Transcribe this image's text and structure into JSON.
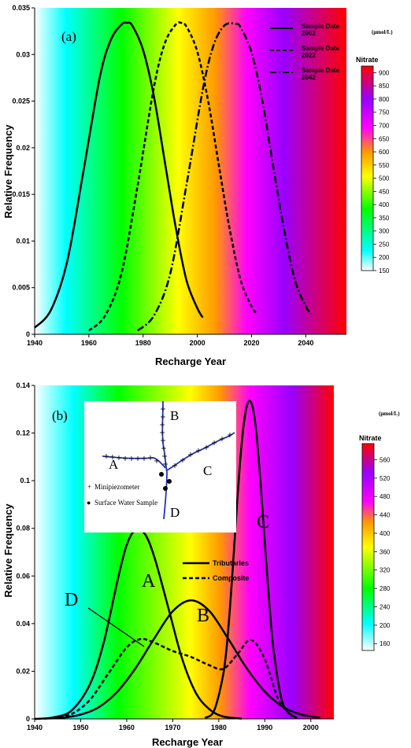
{
  "chart_data": [
    {
      "type": "line",
      "panel_label": "(a)",
      "xlabel": "Recharge Year",
      "ylabel": "Relative Frequency",
      "xlim": [
        1940,
        2055
      ],
      "ylim": [
        0,
        0.035
      ],
      "xticks": [
        "1940",
        "1960",
        "1980",
        "2000",
        "2020",
        "2040"
      ],
      "yticks": [
        "0",
        "0.005",
        "0.01",
        "0.015",
        "0.02",
        "0.025",
        "0.03",
        "0.035"
      ],
      "xtick_values": [
        1940,
        1960,
        1980,
        2000,
        2020,
        2040
      ],
      "ytick_values": [
        0,
        0.005,
        0.01,
        0.015,
        0.02,
        0.025,
        0.03,
        0.035
      ],
      "background": "nitrate colour gradient along recharge year",
      "series": [
        {
          "name": "Sample Date 2002",
          "style": "solid",
          "x": [
            1940,
            1946,
            1952,
            1958,
            1964,
            1968,
            1972,
            1974,
            1976,
            1980,
            1984,
            1988,
            1992,
            1996,
            2000,
            2002
          ],
          "y": [
            0.0007,
            0.0026,
            0.0078,
            0.0175,
            0.0275,
            0.0315,
            0.0332,
            0.0334,
            0.0331,
            0.0305,
            0.0255,
            0.0185,
            0.0115,
            0.0058,
            0.0028,
            0.0018
          ]
        },
        {
          "name": "Sample Date 2022",
          "style": "dashed",
          "x": [
            1960,
            1966,
            1972,
            1978,
            1984,
            1988,
            1992,
            1994,
            1996,
            2000,
            2004,
            2008,
            2012,
            2016,
            2020,
            2022
          ],
          "y": [
            0.0004,
            0.002,
            0.0065,
            0.016,
            0.0265,
            0.0312,
            0.0332,
            0.0334,
            0.033,
            0.0303,
            0.025,
            0.018,
            0.0112,
            0.0058,
            0.003,
            0.0022
          ]
        },
        {
          "name": "Sample Date 2042",
          "style": "dash-dot",
          "x": [
            1978,
            1984,
            1990,
            1996,
            2002,
            2006,
            2010,
            2014,
            2016,
            2020,
            2024,
            2028,
            2032,
            2036,
            2040,
            2042
          ],
          "y": [
            0.0004,
            0.002,
            0.0065,
            0.016,
            0.0262,
            0.031,
            0.0331,
            0.0333,
            0.0329,
            0.0302,
            0.025,
            0.018,
            0.0112,
            0.0058,
            0.003,
            0.0022
          ]
        }
      ],
      "legend": [
        {
          "line1": "Sample Date",
          "line2": "2002",
          "style": "solid"
        },
        {
          "line1": "Sample Date",
          "line2": "2022",
          "style": "dashed"
        },
        {
          "line1": "Sample Date",
          "line2": "2042",
          "style": "dash-dot"
        }
      ],
      "legend_position": "top-right",
      "colorbar": {
        "title": "Nitrate",
        "unit": "(μmol/L)",
        "ticks": [
          "900",
          "850",
          "800",
          "750",
          "700",
          "650",
          "600",
          "550",
          "500",
          "450",
          "400",
          "350",
          "300",
          "250",
          "200",
          "150"
        ],
        "tick_values": [
          900,
          850,
          800,
          750,
          700,
          650,
          600,
          550,
          500,
          450,
          400,
          350,
          300,
          250,
          200,
          150
        ],
        "range": [
          150,
          925
        ]
      }
    },
    {
      "type": "line",
      "panel_label": "(b)",
      "xlabel": "Recharge Year",
      "ylabel": "Relative Frequency",
      "xlim": [
        1940,
        2005
      ],
      "ylim": [
        0,
        0.14
      ],
      "xticks": [
        "1940",
        "1950",
        "1960",
        "1970",
        "1980",
        "1990",
        "2000"
      ],
      "yticks": [
        "0",
        "0.02",
        "0.04",
        "0.06",
        "0.08",
        "0.1",
        "0.12",
        "0.14"
      ],
      "xtick_values": [
        1940,
        1950,
        1960,
        1970,
        1980,
        1990,
        2000
      ],
      "ytick_values": [
        0,
        0.02,
        0.04,
        0.06,
        0.08,
        0.1,
        0.12,
        0.14
      ],
      "background": "nitrate colour gradient along recharge year",
      "series": [
        {
          "name": "Tributaries",
          "label": "A",
          "style": "solid",
          "x": [
            1940,
            1944,
            1948,
            1952,
            1955,
            1958,
            1960,
            1962,
            1964,
            1966,
            1969,
            1972,
            1975,
            1978,
            1981,
            1985
          ],
          "y": [
            0,
            0.0006,
            0.0035,
            0.0145,
            0.032,
            0.058,
            0.073,
            0.0795,
            0.0775,
            0.068,
            0.047,
            0.0255,
            0.011,
            0.004,
            0.001,
            0.0001
          ]
        },
        {
          "name": "Tributaries",
          "label": "B",
          "style": "solid",
          "x": [
            1942,
            1946,
            1950,
            1954,
            1958,
            1962,
            1966,
            1970,
            1974,
            1978,
            1982,
            1986,
            1990,
            1994,
            1998,
            2002
          ],
          "y": [
            0.0001,
            0.0005,
            0.0018,
            0.005,
            0.0115,
            0.0215,
            0.0338,
            0.0452,
            0.0498,
            0.0452,
            0.0338,
            0.0215,
            0.0115,
            0.005,
            0.0018,
            0.0005
          ]
        },
        {
          "name": "Tributaries",
          "label": "C",
          "style": "solid",
          "x": [
            1977,
            1979,
            1981,
            1982,
            1983,
            1984,
            1985,
            1986,
            1987,
            1988,
            1989,
            1990,
            1991,
            1992,
            1994,
            1997
          ],
          "y": [
            0.0004,
            0.0035,
            0.019,
            0.036,
            0.062,
            0.091,
            0.116,
            0.1305,
            0.133,
            0.123,
            0.101,
            0.074,
            0.048,
            0.0275,
            0.006,
            0.0003
          ]
        },
        {
          "name": "Composite",
          "label": "D",
          "style": "dashed",
          "x": [
            1944,
            1948,
            1952,
            1956,
            1960,
            1963,
            1966,
            1970,
            1974,
            1978,
            1981,
            1984,
            1987,
            1990,
            1993,
            1996
          ],
          "y": [
            0.0002,
            0.002,
            0.008,
            0.019,
            0.03,
            0.0335,
            0.032,
            0.0285,
            0.026,
            0.0225,
            0.021,
            0.027,
            0.0332,
            0.025,
            0.008,
            0.001
          ]
        }
      ],
      "legend": [
        {
          "label": "Tributaries",
          "style": "solid"
        },
        {
          "label": "Composite",
          "style": "dashed"
        }
      ],
      "legend_position": "center-right",
      "annotations": [
        "A",
        "B",
        "C",
        "D"
      ],
      "inset_map": {
        "labels": [
          "A",
          "B",
          "C",
          "D"
        ],
        "legend": [
          {
            "symbol": "+",
            "label": "Minipiezometer"
          },
          {
            "symbol": "●",
            "label": "Surface Water Sample"
          }
        ]
      },
      "colorbar": {
        "title": "Nitrate",
        "unit": "(μmol/L)",
        "ticks": [
          "560",
          "520",
          "480",
          "440",
          "400",
          "360",
          "320",
          "280",
          "240",
          "200",
          "160"
        ],
        "tick_values": [
          560,
          520,
          480,
          440,
          400,
          360,
          320,
          280,
          240,
          200,
          160
        ],
        "range": [
          145,
          595
        ]
      }
    }
  ],
  "colors": {
    "spectrum": [
      "#ffffff",
      "#00ffff",
      "#00ff00",
      "#ffff00",
      "#ff8000",
      "#ff00ff",
      "#8000ff",
      "#ff0000"
    ],
    "line": "#000000",
    "inset_river": "#2233bb"
  }
}
